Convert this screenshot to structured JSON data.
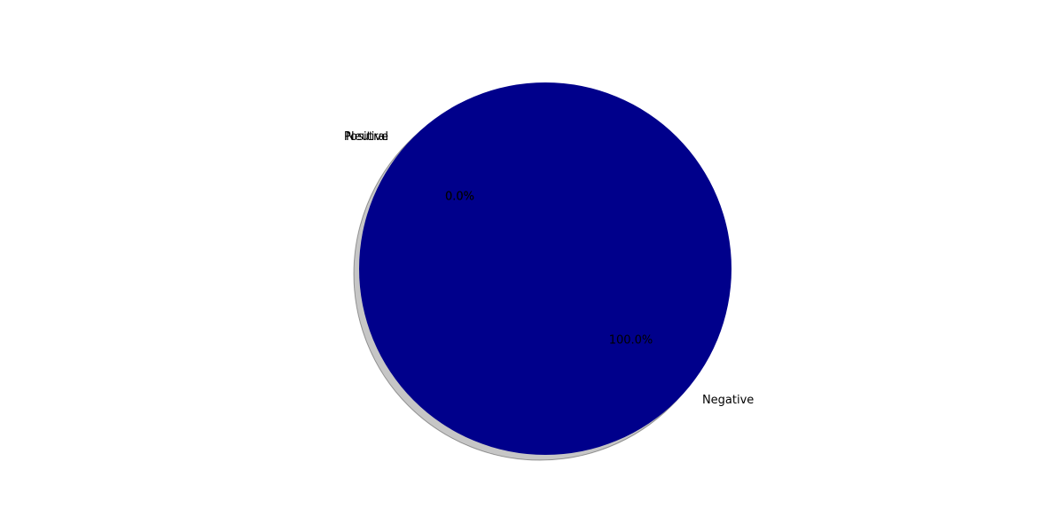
{
  "chart_data": {
    "type": "pie",
    "title": "",
    "slices": [
      {
        "label": "Positive",
        "value": 0.0,
        "pct_label": "0.0%",
        "color": "#00008b"
      },
      {
        "label": "Neutral",
        "value": 0.0,
        "pct_label": "0.0%",
        "color": "#00008b"
      },
      {
        "label": "Negative",
        "value": 100.0,
        "pct_label": "100.0%",
        "color": "#00008b"
      }
    ],
    "shadow": true,
    "shadow_color": "#808080",
    "slice_edge_color": "#000000"
  }
}
